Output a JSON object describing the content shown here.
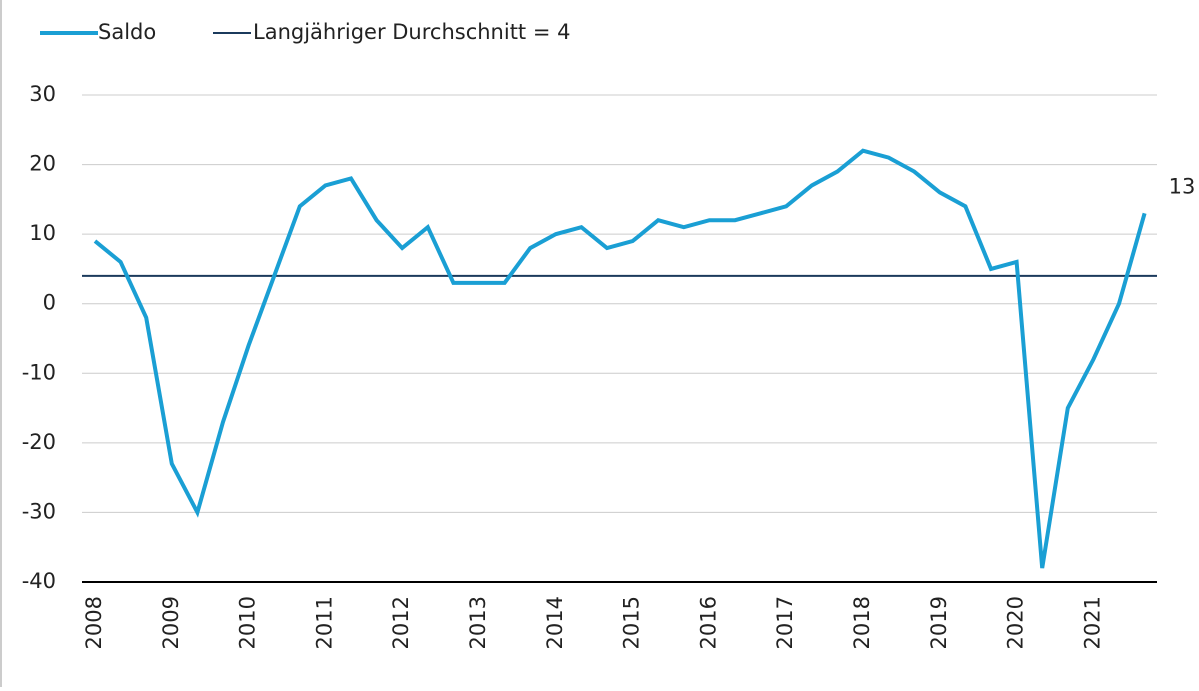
{
  "chart_data": {
    "type": "line",
    "categories": [
      "2008",
      null,
      null,
      "2009",
      null,
      null,
      "2010",
      null,
      null,
      "2011",
      null,
      null,
      "2012",
      null,
      null,
      "2013",
      null,
      null,
      "2014",
      null,
      null,
      "2015",
      null,
      null,
      "2016",
      null,
      null,
      "2017",
      null,
      null,
      "2018",
      null,
      null,
      "2019",
      null,
      null,
      "2020",
      null,
      null,
      "2021",
      null,
      null
    ],
    "series": [
      {
        "name": "Saldo",
        "color": "#1a9fd4",
        "values": [
          9,
          6,
          -2,
          -23,
          -30,
          -17,
          -6,
          4,
          14,
          17,
          18,
          12,
          8,
          11,
          3,
          3,
          3,
          8,
          10,
          11,
          8,
          9,
          12,
          11,
          12,
          12,
          13,
          14,
          17,
          19,
          22,
          21,
          19,
          16,
          14,
          5,
          6,
          -38,
          -15,
          -8,
          0,
          13
        ]
      }
    ],
    "reference_line": {
      "name": "Langjähriger Durchschnitt = 4",
      "value": 4,
      "color": "#1b3a5c"
    },
    "ylim": [
      -40,
      30
    ],
    "yticks": [
      -40,
      -30,
      -20,
      -10,
      0,
      10,
      20,
      30
    ],
    "grid": true
  }
}
